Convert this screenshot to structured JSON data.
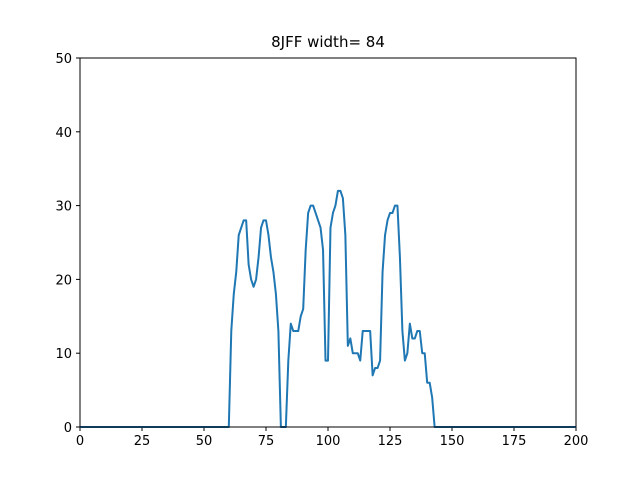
{
  "chart_data": {
    "type": "line",
    "title": "8JFF width= 84",
    "xlabel": "",
    "ylabel": "",
    "xlim": [
      0,
      200
    ],
    "ylim": [
      0,
      50
    ],
    "xticks": [
      0,
      25,
      50,
      75,
      100,
      125,
      150,
      175,
      200
    ],
    "yticks": [
      0,
      10,
      20,
      30,
      40,
      50
    ],
    "grid": false,
    "line_color": "#1f77b4",
    "series": [
      {
        "x": [
          0,
          60,
          61,
          62,
          63,
          64,
          65,
          66,
          67,
          68,
          69,
          70,
          71,
          72,
          73,
          74,
          75,
          76,
          77,
          78,
          79,
          80,
          81,
          82,
          83,
          84,
          85,
          86,
          87,
          88,
          89,
          90,
          91,
          92,
          93,
          94,
          95,
          96,
          97,
          98,
          99,
          100,
          101,
          102,
          103,
          104,
          105,
          106,
          107,
          108,
          109,
          110,
          111,
          112,
          113,
          114,
          115,
          116,
          117,
          118,
          119,
          120,
          121,
          122,
          123,
          124,
          125,
          126,
          127,
          128,
          129,
          130,
          131,
          132,
          133,
          134,
          135,
          136,
          137,
          138,
          139,
          140,
          141,
          142,
          143,
          144,
          200
        ],
        "y": [
          0,
          0,
          13,
          18,
          21,
          26,
          27,
          28,
          28,
          22,
          20,
          19,
          20,
          23,
          27,
          28,
          28,
          26,
          23,
          21,
          18,
          13,
          0,
          0,
          0,
          9,
          14,
          13,
          13,
          13,
          15,
          16,
          24,
          29,
          30,
          30,
          29,
          28,
          27,
          24,
          9,
          9,
          27,
          29,
          30,
          32,
          32,
          31,
          26,
          11,
          12,
          10,
          10,
          10,
          9,
          13,
          13,
          13,
          13,
          7,
          8,
          8,
          9,
          21,
          26,
          28,
          29,
          29,
          30,
          30,
          23,
          13,
          9,
          10,
          14,
          12,
          12,
          13,
          13,
          10,
          10,
          6,
          6,
          4,
          0,
          0,
          0
        ]
      }
    ]
  }
}
